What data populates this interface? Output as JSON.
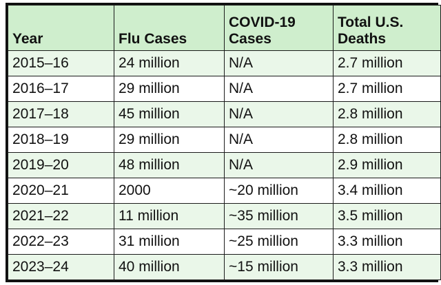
{
  "table": {
    "headers": [
      "Year",
      "Flu Cases",
      "COVID-19 Cases",
      "Total U.S. Deaths"
    ],
    "rows": [
      [
        "2015–16",
        "24 million",
        "N/A",
        "2.7 million"
      ],
      [
        "2016–17",
        "29 million",
        "N/A",
        "2.7 million"
      ],
      [
        "2017–18",
        "45 million",
        "N/A",
        "2.8 million"
      ],
      [
        "2018–19",
        "29 million",
        "N/A",
        "2.8 million"
      ],
      [
        "2019–20",
        "48 million",
        "N/A",
        "2.9 million"
      ],
      [
        "2020–21",
        "2000",
        "~20 million",
        "3.4 million"
      ],
      [
        "2021–22",
        "11 million",
        "~35 million",
        "3.5 million"
      ],
      [
        "2022–23",
        "31 million",
        "~25 million",
        "3.3 million"
      ],
      [
        "2023–24",
        "40 million",
        "~15 million",
        "3.3 million"
      ]
    ]
  },
  "colors": {
    "header_bg": "#cfeecd",
    "stripe_bg": "#eaf7e9",
    "border": "#111111"
  }
}
